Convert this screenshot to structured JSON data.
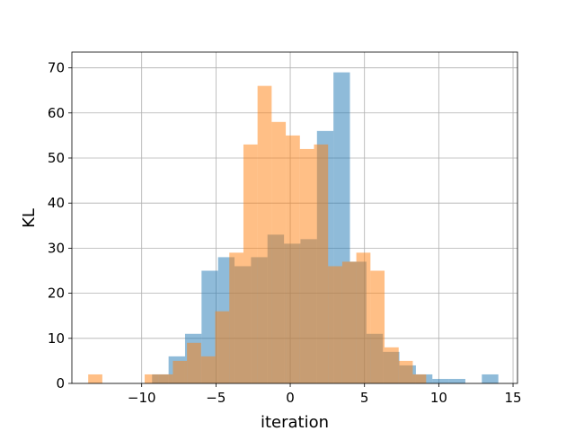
{
  "chart_data": {
    "type": "bar",
    "subtype": "overlaid-histogram",
    "xlabel": "iteration",
    "ylabel": "KL",
    "xlim": [
      -14.7,
      15.3
    ],
    "ylim": [
      0,
      73.5
    ],
    "xticks": [
      -10,
      -5,
      0,
      5,
      10,
      15
    ],
    "xtick_labels": [
      "−10",
      "−5",
      "0",
      "5",
      "10",
      "15"
    ],
    "yticks": [
      0,
      10,
      20,
      30,
      40,
      50,
      60,
      70
    ],
    "ytick_labels": [
      "0",
      "10",
      "20",
      "30",
      "40",
      "50",
      "60",
      "70"
    ],
    "grid": true,
    "series": [
      {
        "color": "#1f77b4",
        "opacity": 0.5,
        "bin_edges": [
          -9.3,
          -8.19,
          -7.08,
          -5.97,
          -4.86,
          -3.75,
          -2.64,
          -1.53,
          -0.42,
          0.69,
          1.8,
          2.91,
          4.02,
          5.13,
          6.24,
          7.35,
          8.46,
          9.57,
          10.68,
          11.79,
          12.9,
          14.01
        ],
        "counts": [
          2,
          6,
          11,
          25,
          28,
          26,
          28,
          33,
          31,
          32,
          56,
          69,
          27,
          11,
          7,
          4,
          2,
          1,
          1,
          0,
          2
        ]
      },
      {
        "color": "#ff7f0e",
        "opacity": 0.5,
        "bin_edges": [
          -13.6,
          -12.65,
          -11.7,
          -10.75,
          -9.8,
          -8.85,
          -7.9,
          -6.95,
          -6.0,
          -5.05,
          -4.1,
          -3.15,
          -2.2,
          -1.25,
          -0.3,
          0.65,
          1.6,
          2.55,
          3.5,
          4.45,
          5.4,
          6.35,
          7.3,
          8.25,
          9.15
        ],
        "counts": [
          2,
          0,
          0,
          0,
          2,
          2,
          5,
          9,
          6,
          16,
          29,
          53,
          66,
          58,
          55,
          52,
          53,
          26,
          27,
          29,
          25,
          8,
          5,
          2
        ]
      }
    ]
  }
}
